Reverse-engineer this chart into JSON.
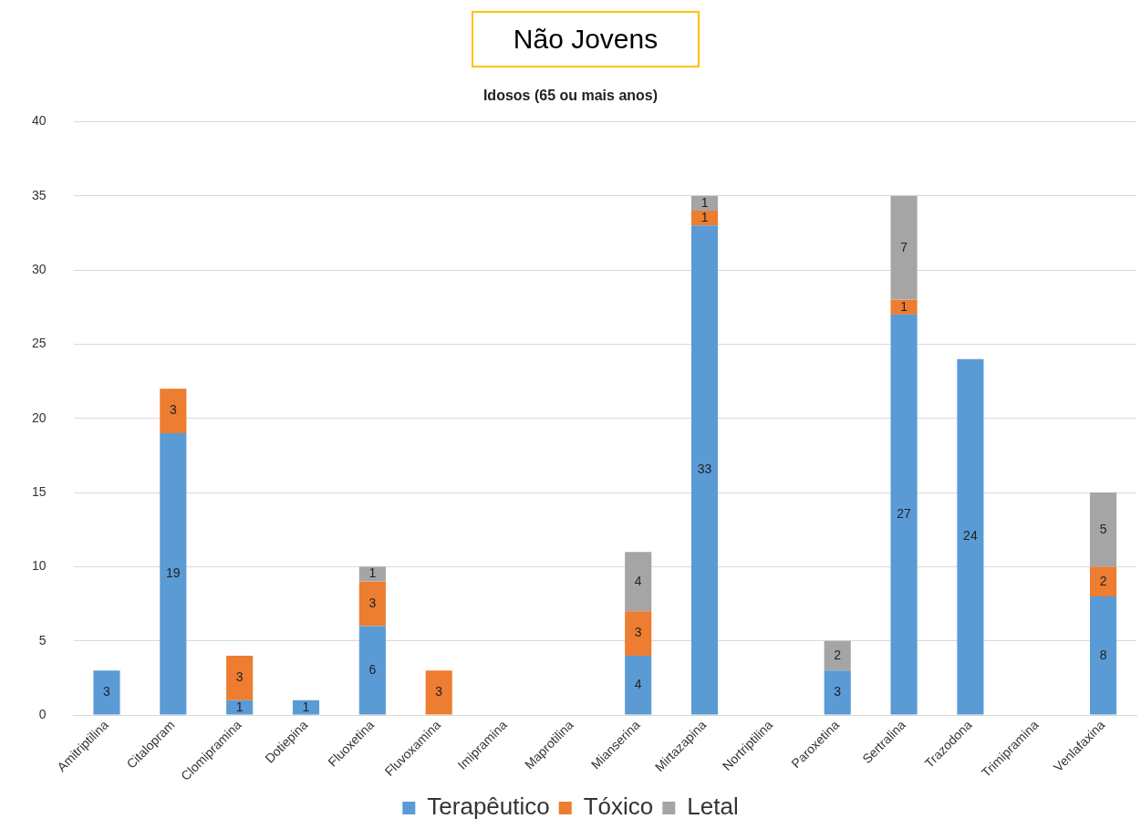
{
  "chart_data": {
    "type": "bar",
    "title": "Não Jovens",
    "subtitle": "Idosos (65 ou mais anos)",
    "categories": [
      "Amitriptilina",
      "Citalopram",
      "Clomipramina",
      "Dotiepina",
      "Fluoxetina",
      "Fluvoxamina",
      "Imipramina",
      "Maprotilina",
      "Mianserina",
      "Mirtazapina",
      "Nortriptilina",
      "Paroxetina",
      "Sertralina",
      "Trazodona",
      "Trimipramina",
      "Venlafaxina"
    ],
    "series": [
      {
        "name": "Terapêutico",
        "color": "#5b9bd5",
        "values": [
          3,
          19,
          1,
          1,
          6,
          null,
          null,
          null,
          4,
          33,
          null,
          3,
          27,
          24,
          null,
          8
        ]
      },
      {
        "name": "Tóxico",
        "color": "#ed7d31",
        "values": [
          null,
          3,
          3,
          null,
          3,
          3,
          null,
          null,
          3,
          1,
          null,
          null,
          1,
          null,
          null,
          2
        ]
      },
      {
        "name": "Letal",
        "color": "#a5a5a5",
        "values": [
          null,
          null,
          null,
          null,
          1,
          null,
          null,
          null,
          4,
          1,
          null,
          2,
          7,
          null,
          null,
          5
        ]
      }
    ],
    "stacked": true,
    "data_labels": true,
    "ylim": [
      0,
      40
    ],
    "yticks": [
      0,
      5,
      10,
      15,
      20,
      25,
      30,
      35,
      40
    ],
    "grid": "y",
    "legend": "bottom"
  }
}
